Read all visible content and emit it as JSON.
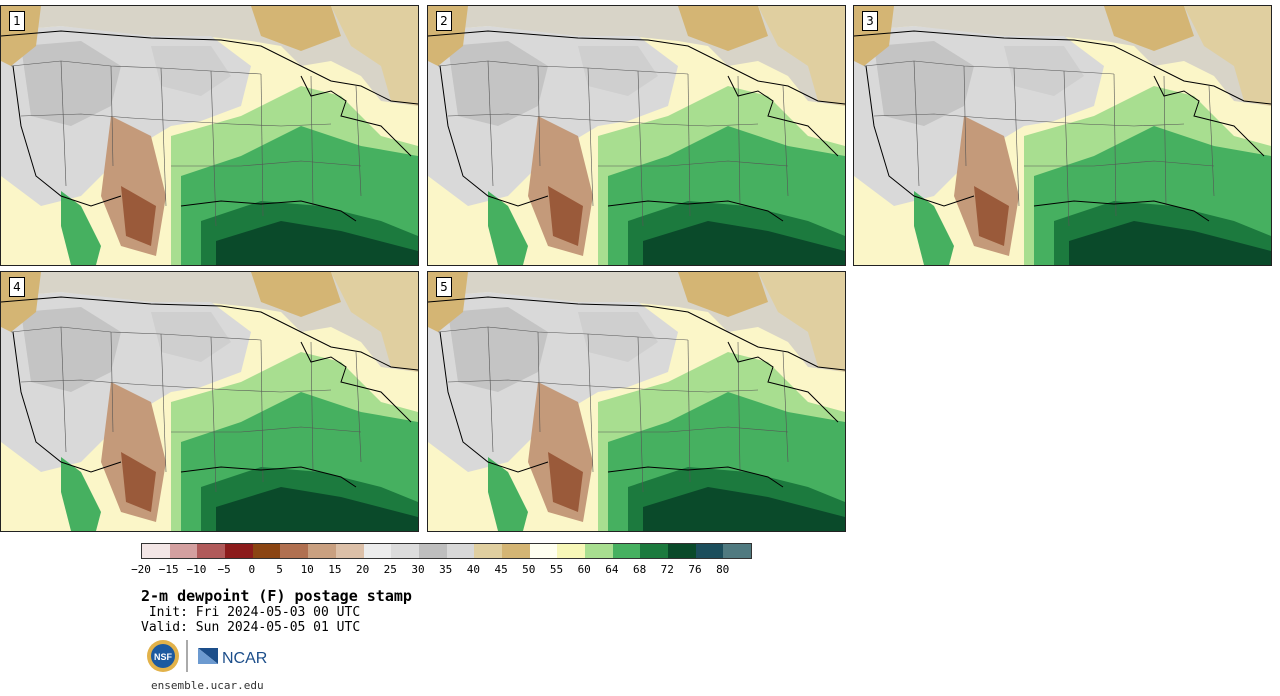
{
  "panels": [
    {
      "label": "1"
    },
    {
      "label": "2"
    },
    {
      "label": "3"
    },
    {
      "label": "4"
    },
    {
      "label": "5"
    }
  ],
  "colorbar": {
    "colors": [
      "#f3e6e6",
      "#d4a0a0",
      "#b05a5a",
      "#8c1c1c",
      "#8b4513",
      "#b07050",
      "#c9a080",
      "#dcc0a8",
      "#ececec",
      "#dcdcdc",
      "#bebebe",
      "#d8d8d8",
      "#e0cfa0",
      "#d4b574",
      "#fffff0",
      "#f7f7b8",
      "#a8de90",
      "#46b060",
      "#1c7a3e",
      "#0a4a2a",
      "#1c4e5c",
      "#507a80"
    ],
    "ticks": [
      "−20",
      "−15",
      "−10",
      "−5",
      "0",
      "5",
      "10",
      "15",
      "20",
      "25",
      "30",
      "35",
      "40",
      "45",
      "50",
      "55",
      "60",
      "64",
      "68",
      "72",
      "76",
      "80"
    ]
  },
  "caption": {
    "title": "2-m dewpoint (F) postage stamp",
    "init": " Init: Fri 2024-05-03 00 UTC",
    "valid": "Valid: Sun 2024-05-05 01 UTC"
  },
  "logos": {
    "nsf": "NSF",
    "ncar": "NCAR"
  },
  "website": "ensemble.ucar.edu"
}
